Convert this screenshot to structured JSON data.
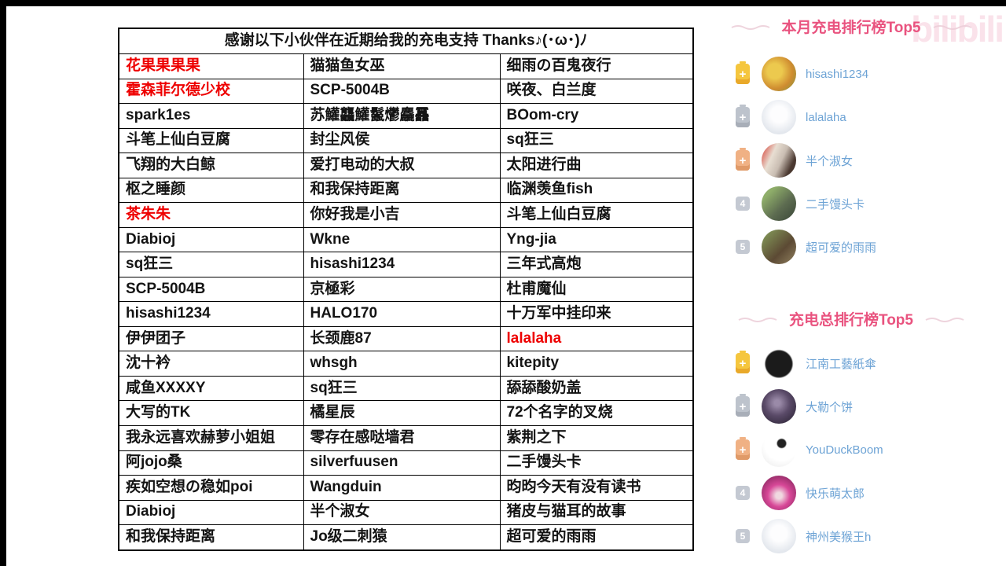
{
  "colors": {
    "accent_pink": "#e9537f",
    "username_blue": "#6da3d5",
    "highlight_red": "#ee0000",
    "battery_gold": "#f5c63e",
    "battery_silver": "#bdc3cc",
    "battery_bronze": "#f0b184",
    "badge_gray": "#c4c9d2",
    "table_border": "#000000"
  },
  "watermark": {
    "text": "bilibili"
  },
  "table": {
    "title": "感谢以下小伙伴在近期给我的充电支持 Thanks♪(･ω･)ﾉ",
    "rows": [
      [
        {
          "text": "花果果果果",
          "red": true
        },
        {
          "text": "猫猫鱼女巫",
          "red": false
        },
        {
          "text": "细雨の百鬼夜行",
          "red": false
        }
      ],
      [
        {
          "text": "霍森菲尔德少校",
          "red": true
        },
        {
          "text": "SCP-5004B",
          "red": false
        },
        {
          "text": "咲夜、白兰度",
          "red": false
        }
      ],
      [
        {
          "text": "spark1es",
          "red": false
        },
        {
          "text": "苏鱹龘鱹鬣爩麤靐",
          "red": false
        },
        {
          "text": "BOom-cry",
          "red": false
        }
      ],
      [
        {
          "text": "斗笔上仙白豆腐",
          "red": false
        },
        {
          "text": "封尘风侯",
          "red": false
        },
        {
          "text": "sq狂三",
          "red": false
        }
      ],
      [
        {
          "text": "飞翔的大白鲸",
          "red": false
        },
        {
          "text": "爱打电动的大叔",
          "red": false
        },
        {
          "text": "太阳进行曲",
          "red": false
        }
      ],
      [
        {
          "text": "枢之睡颜",
          "red": false
        },
        {
          "text": "和我保持距离",
          "red": false
        },
        {
          "text": "临渊羡鱼fish",
          "red": false
        }
      ],
      [
        {
          "text": "茶朱朱",
          "red": true
        },
        {
          "text": "你好我是小吉",
          "red": false
        },
        {
          "text": "斗笔上仙白豆腐",
          "red": false
        }
      ],
      [
        {
          "text": "Diabioj",
          "red": false
        },
        {
          "text": "Wkne",
          "red": false
        },
        {
          "text": "Yng-jia",
          "red": false
        }
      ],
      [
        {
          "text": "sq狂三",
          "red": false
        },
        {
          "text": "hisashi1234",
          "red": false
        },
        {
          "text": "三年式高炮",
          "red": false
        }
      ],
      [
        {
          "text": "SCP-5004B",
          "red": false
        },
        {
          "text": "京極彩",
          "red": false
        },
        {
          "text": "杜甫魔仙",
          "red": false
        }
      ],
      [
        {
          "text": "hisashi1234",
          "red": false
        },
        {
          "text": "HALO170",
          "red": false
        },
        {
          "text": "十万军中挂印来",
          "red": false
        }
      ],
      [
        {
          "text": "伊伊团子",
          "red": false
        },
        {
          "text": "长颈鹿87",
          "red": false
        },
        {
          "text": "lalalaha",
          "red": true
        }
      ],
      [
        {
          "text": "沈十衿",
          "red": false
        },
        {
          "text": "whsgh",
          "red": false
        },
        {
          "text": "kitepity",
          "red": false
        }
      ],
      [
        {
          "text": "咸鱼XXXXY",
          "red": false
        },
        {
          "text": "sq狂三",
          "red": false
        },
        {
          "text": "舔舔酸奶盖",
          "red": false
        }
      ],
      [
        {
          "text": "大写的TK",
          "red": false
        },
        {
          "text": "橘星辰",
          "red": false
        },
        {
          "text": "72个名字的叉烧",
          "red": false
        }
      ],
      [
        {
          "text": "我永远喜欢赫萝小姐姐",
          "red": false
        },
        {
          "text": "零存在感哒墙君",
          "red": false
        },
        {
          "text": "紫荆之下",
          "red": false
        }
      ],
      [
        {
          "text": "阿jojo桑",
          "red": false
        },
        {
          "text": "silverfuusen",
          "red": false
        },
        {
          "text": "二手馒头卡",
          "red": false
        }
      ],
      [
        {
          "text": "疾如空想の稳如poi",
          "red": false
        },
        {
          "text": "Wangduin",
          "red": false
        },
        {
          "text": "昀昀今天有没有读书",
          "red": false
        }
      ],
      [
        {
          "text": "Diabioj",
          "red": false
        },
        {
          "text": "半个淑女",
          "red": false
        },
        {
          "text": "猪皮与猫耳的故事",
          "red": false
        }
      ],
      [
        {
          "text": "和我保持距离",
          "red": false
        },
        {
          "text": "Jo级二刺猿",
          "red": false
        },
        {
          "text": "超可爱的雨雨",
          "red": false
        }
      ]
    ]
  },
  "leaderboards": {
    "monthly": {
      "title": "本月充电排行榜Top5",
      "items": [
        {
          "rank": 1,
          "rank_icon": "battery-gold",
          "name": "hisashi1234",
          "avatar_css": "radial-gradient(circle at 38% 42%, #ecc94e 25%, #cf8c30 60%, #86953d 95%)"
        },
        {
          "rank": 2,
          "rank_icon": "battery-silver",
          "name": "lalalaha",
          "avatar_css": "radial-gradient(circle at 50% 42%, #fdfdfe 30%, #e4e8ee 70%, #d6dce5 100%)"
        },
        {
          "rank": 3,
          "rank_icon": "battery-bronze",
          "name": "半个淑女",
          "avatar_css": "linear-gradient(115deg, #d8544a 6%, #e8ded2 32%, #c9bdb2 55%, #4a3830 80%)"
        },
        {
          "rank": 4,
          "rank_icon": "number",
          "name": "二手馒头卡",
          "avatar_css": "linear-gradient(135deg, #8fae6a 20%, #5c6b50 60%, #3d4a3a 95%)"
        },
        {
          "rank": 5,
          "rank_icon": "number",
          "name": "超可爱的雨雨",
          "avatar_css": "linear-gradient(135deg, #7c8a52 15%, #5c4a34 60%, #8a7a5a 95%)"
        }
      ]
    },
    "total": {
      "title": "充电总排行榜Top5",
      "items": [
        {
          "rank": 1,
          "rank_icon": "battery-gold",
          "name": "江南工藝紙傘",
          "avatar_css": "radial-gradient(circle at 50% 52%, #1b1b1b 52%, #ffffff 58%)"
        },
        {
          "rank": 2,
          "rank_icon": "battery-silver",
          "name": "大勒个饼",
          "avatar_css": "radial-gradient(circle at 45% 40%, #9a8aa8 10%, #5a4a68 45%, #2e2638 90%)"
        },
        {
          "rank": 3,
          "rank_icon": "battery-bronze",
          "name": "YouDuckBoom",
          "avatar_css": "radial-gradient(circle at 58% 32%, #222222 13%, #ffffff 17%, #ffffff 55%, #e8e8e8 100%)"
        },
        {
          "rank": 4,
          "rank_icon": "number",
          "name": "快乐萌太郎",
          "avatar_css": "radial-gradient(circle at 50% 58%, #f0d8e0 12%, #d84898 42%, #8a2860 85%)"
        },
        {
          "rank": 5,
          "rank_icon": "number",
          "name": "神州美猴王h",
          "avatar_css": "radial-gradient(circle at 50% 42%, #fdfdfe 30%, #e4e8ee 70%, #d6dce5 100%)"
        }
      ]
    }
  }
}
